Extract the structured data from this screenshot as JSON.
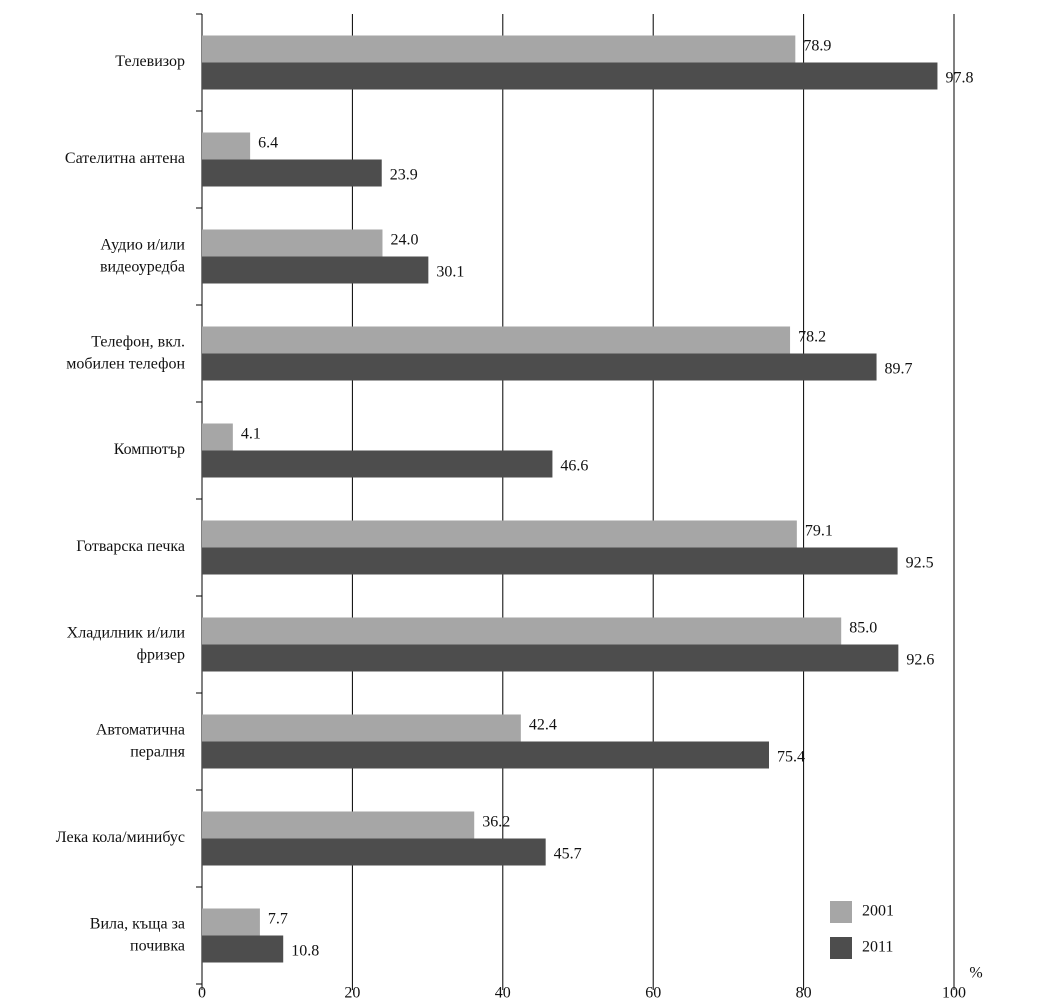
{
  "chart_data": {
    "type": "bar",
    "orientation": "horizontal",
    "categories": [
      "Телевизор",
      "Сателитна антена",
      "Аудио и/или\nвидеоуредба",
      "Телефон, вкл.\nмобилен телефон",
      "Компютър",
      "Готварска печка",
      "Хладилник и/или\nфризер",
      "Автоматична\nпералня",
      "Лека кола/минибус",
      "Вила, къща за\nпочивка"
    ],
    "series": [
      {
        "name": "2001",
        "color": "#a6a6a6",
        "values": [
          78.9,
          6.4,
          24.0,
          78.2,
          4.1,
          79.1,
          85.0,
          42.4,
          36.2,
          7.7
        ],
        "value_labels": [
          "78.9",
          "6.4",
          "24.0",
          "78.2",
          "4.1",
          "79.1",
          "85.0",
          "42.4",
          "36.2",
          "7.7"
        ]
      },
      {
        "name": "2011",
        "color": "#4d4d4d",
        "values": [
          97.8,
          23.9,
          30.1,
          89.7,
          46.6,
          92.5,
          92.6,
          75.4,
          45.7,
          10.8
        ],
        "value_labels": [
          "97.8",
          "23.9",
          "30.1",
          "89.7",
          "46.6",
          "92.5",
          "92.6",
          "75.4",
          "45.7",
          "10.8"
        ]
      }
    ],
    "x_label": "%",
    "xlim": [
      0,
      100
    ],
    "xticks": [
      0,
      20,
      40,
      60,
      80,
      100
    ],
    "grid": true,
    "legend": "lower right"
  }
}
